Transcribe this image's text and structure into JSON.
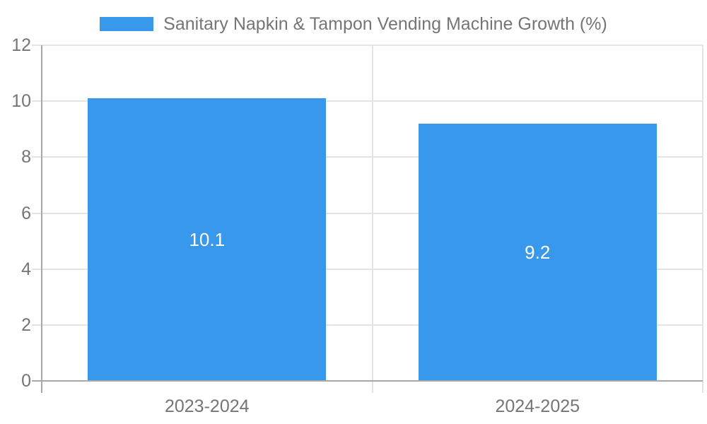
{
  "chart_data": {
    "type": "bar",
    "title": "",
    "legend": {
      "position": "top",
      "label": "Sanitary Napkin & Tampon Vending Machine Growth (%)"
    },
    "categories": [
      "2023-2024",
      "2024-2025"
    ],
    "series": [
      {
        "name": "Sanitary Napkin & Tampon Vending Machine Growth (%)",
        "values": [
          10.1,
          9.2
        ]
      }
    ],
    "value_labels": [
      "10.1",
      "9.2"
    ],
    "xlabel": "",
    "ylabel": "",
    "ylim": [
      0,
      12
    ],
    "yticks": [
      0,
      2,
      4,
      6,
      8,
      10,
      12
    ],
    "grid": true,
    "bar_width_fraction": 0.72,
    "colors": {
      "bar": "#3898ec",
      "grid": "#e4e4e4",
      "axis": "#a8a8a8",
      "tick_label": "#757575",
      "legend_label": "#757575",
      "value_label": "#ffffff",
      "background": "#ffffff"
    }
  }
}
